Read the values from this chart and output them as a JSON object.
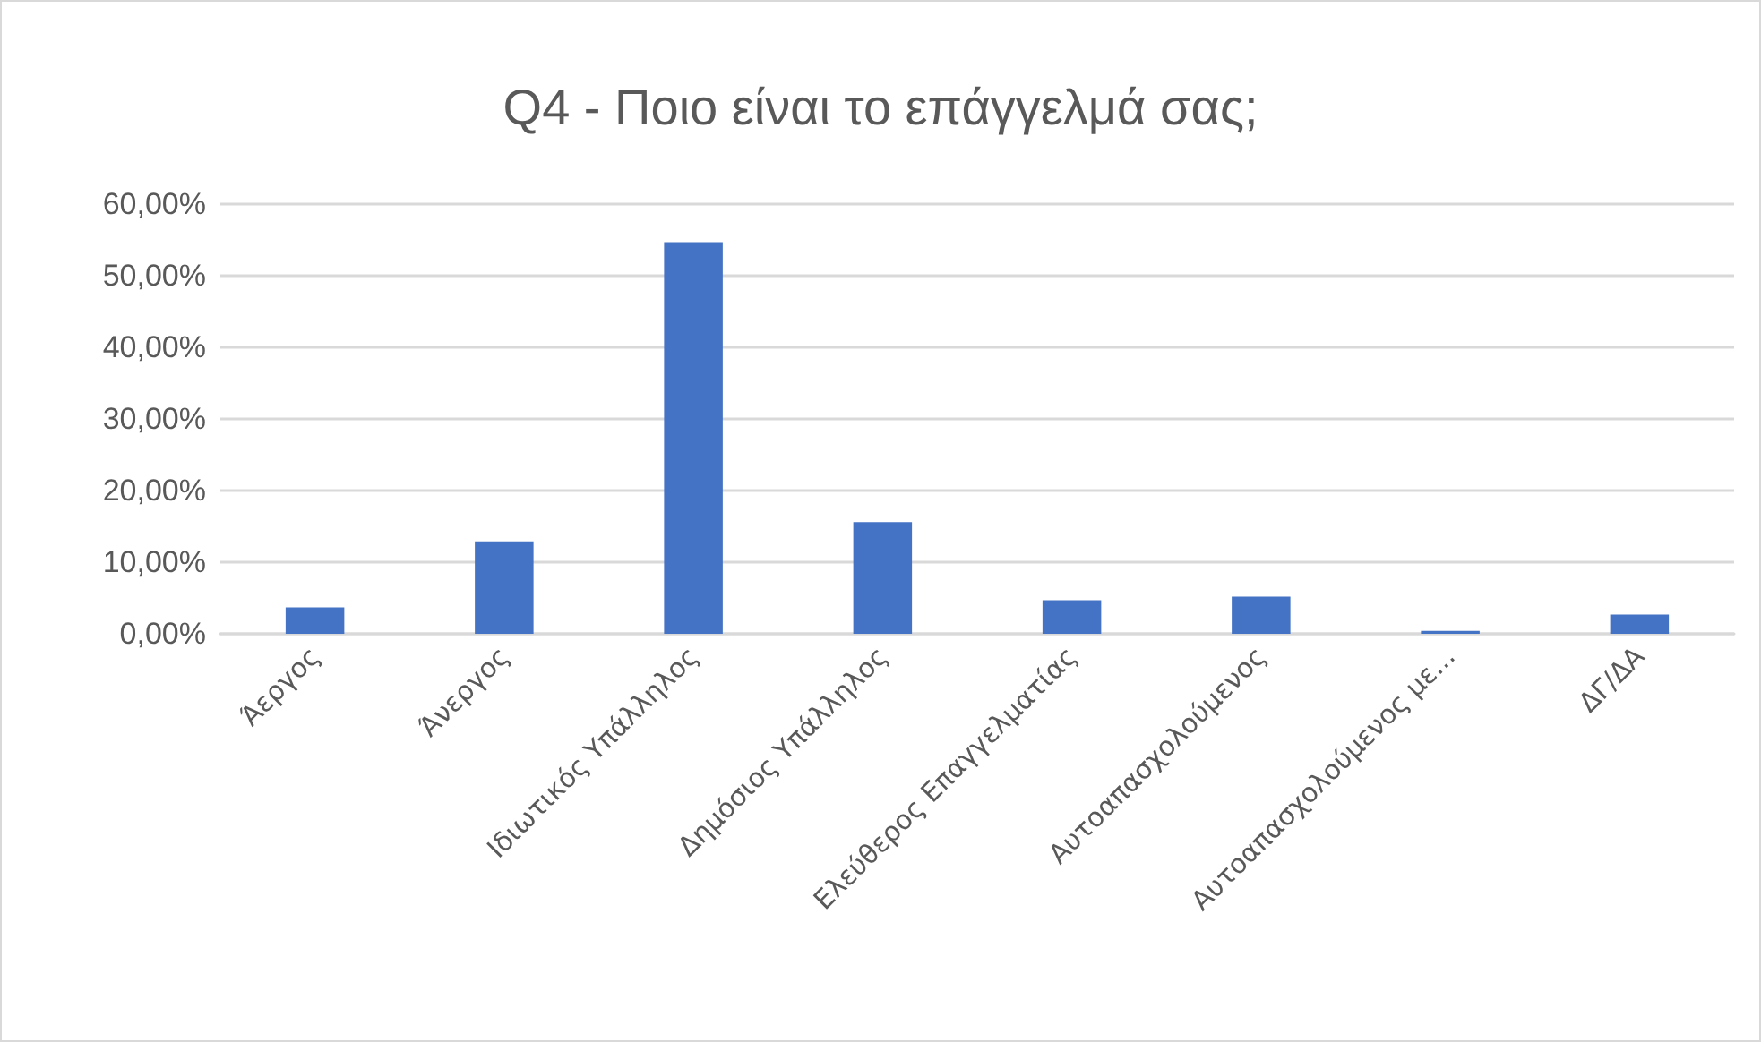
{
  "chart_data": {
    "type": "bar",
    "title": "Q4 - Ποιο είναι το επάγγελμά σας;",
    "categories": [
      "Άεργος",
      "Άνεργος",
      "Ιδιωτικός Υπάλληλος",
      "Δημόσιος Υπάλληλος",
      "Ελεύθερος Επαγγελματίας",
      "Αυτοαπασχολούμενος",
      "Αυτοαπασχολούμενος με...",
      "ΔΓ/ΔΑ"
    ],
    "values": [
      3.7,
      12.9,
      54.7,
      15.6,
      4.7,
      5.2,
      0.4,
      2.7
    ],
    "color": "#4472c4",
    "ylim": [
      0,
      60
    ],
    "yticks": [
      {
        "value": 0,
        "label": "0,00%"
      },
      {
        "value": 10,
        "label": "10,00%"
      },
      {
        "value": 20,
        "label": "20,00%"
      },
      {
        "value": 30,
        "label": "30,00%"
      },
      {
        "value": 40,
        "label": "40,00%"
      },
      {
        "value": 50,
        "label": "50,00%"
      },
      {
        "value": 60,
        "label": "60,00%"
      }
    ],
    "grid": "y"
  }
}
